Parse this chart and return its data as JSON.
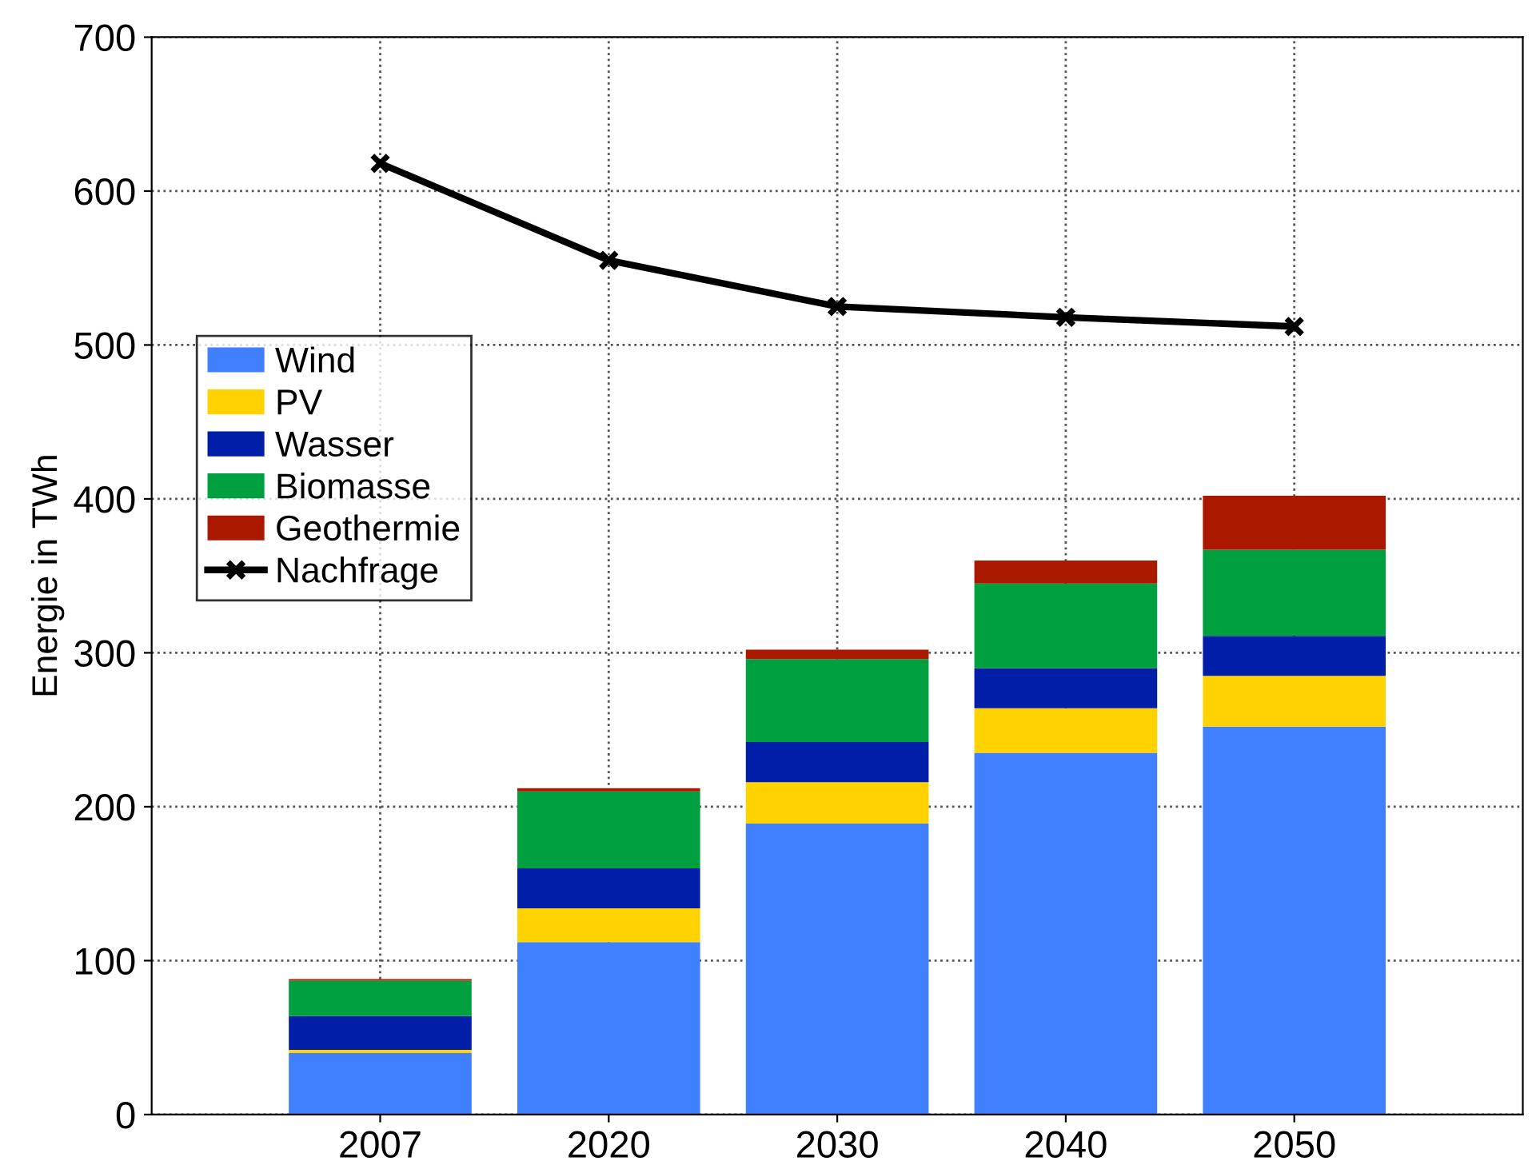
{
  "chart_data": {
    "type": "bar",
    "stacked": true,
    "ylabel": "Energie in TWh",
    "categories": [
      "2007",
      "2020",
      "2030",
      "2040",
      "2050"
    ],
    "series": [
      {
        "name": "Wind",
        "color": "#4080ff",
        "values": [
          40,
          112,
          189,
          235,
          252
        ]
      },
      {
        "name": "PV",
        "color": "#ffd200",
        "values": [
          2,
          22,
          27,
          29,
          33
        ]
      },
      {
        "name": "Wasser",
        "color": "#001ea8",
        "values": [
          22,
          26,
          26,
          26,
          26
        ]
      },
      {
        "name": "Biomasse",
        "color": "#00a040",
        "values": [
          23,
          50,
          54,
          55,
          56
        ]
      },
      {
        "name": "Geothermie",
        "color": "#aa1800",
        "values": [
          1,
          2,
          6,
          15,
          35
        ]
      },
      {
        "name": "Nachfrage",
        "type": "line",
        "color": "#000000",
        "marker": "cross",
        "values": [
          618,
          555,
          525,
          518,
          512
        ]
      }
    ],
    "ylim": [
      0,
      700
    ],
    "yticks": [
      0,
      100,
      200,
      300,
      400,
      500,
      600,
      700
    ],
    "grid": true,
    "legend": "left"
  }
}
